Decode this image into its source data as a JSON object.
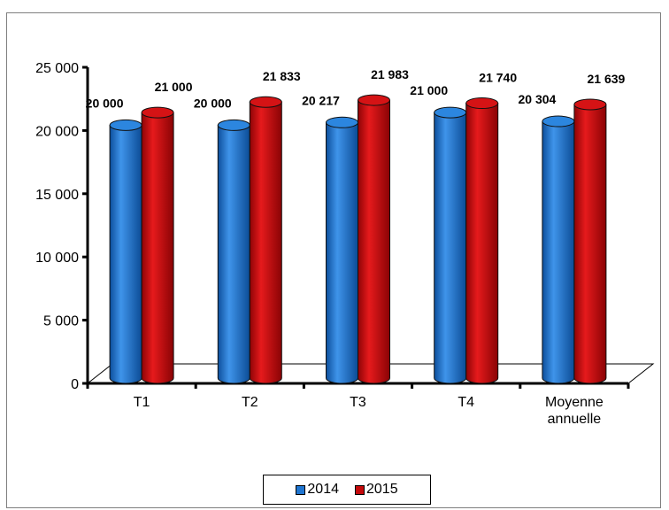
{
  "chart_data": {
    "type": "bar",
    "title": "",
    "xlabel": "",
    "ylabel": "",
    "categories": [
      "T1",
      "T2",
      "T3",
      "T4",
      "Moyenne annuelle"
    ],
    "series": [
      {
        "name": "2014",
        "color": "#1f75d0",
        "values": [
          20000,
          20000,
          20217,
          21000,
          20304
        ],
        "labels": [
          "20 000",
          "20 000",
          "20 217",
          "21 000",
          "20 304"
        ]
      },
      {
        "name": "2015",
        "color": "#c4090b",
        "values": [
          21000,
          21833,
          21983,
          21740,
          21639
        ],
        "labels": [
          "21 000",
          "21 833",
          "21 983",
          "21 740",
          "21 639"
        ]
      }
    ],
    "ylim": [
      0,
      25000
    ],
    "yticks": [
      0,
      5000,
      10000,
      15000,
      20000,
      25000
    ],
    "ytick_labels": [
      "0",
      "5 000",
      "10 000",
      "15 000",
      "20 000",
      "25 000"
    ],
    "grid": false,
    "legend_position": "bottom"
  }
}
